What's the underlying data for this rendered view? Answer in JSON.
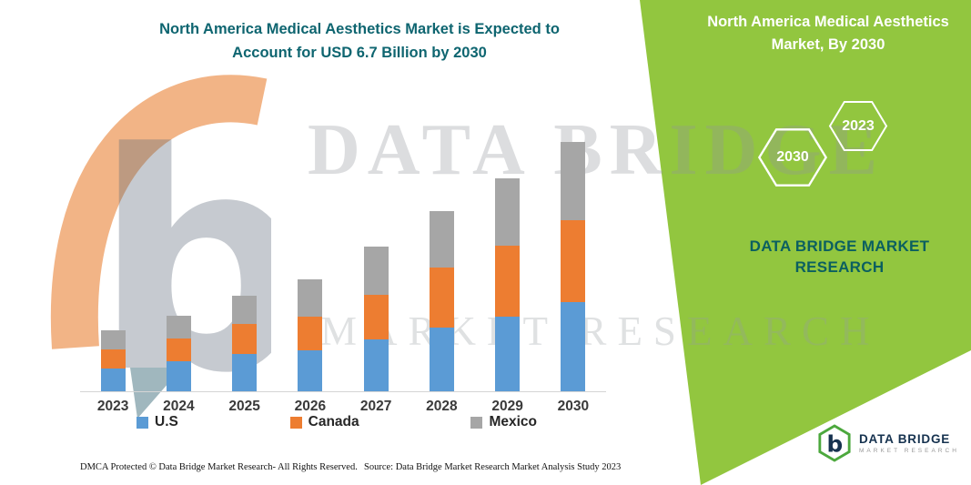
{
  "header": {
    "title_line1": "North America Medical Aesthetics Market is Expected to",
    "title_line2": "Account for USD 6.7 Billion by 2030"
  },
  "banner": {
    "heading": "North America Medical Aesthetics Market, By 2030",
    "hexagon_labels": [
      "2030",
      "2023"
    ],
    "brand_line1": "DATA BRIDGE MARKET",
    "brand_line2": "RESEARCH",
    "background_color": "#92C63F"
  },
  "watermark": {
    "text_line1": "DATA BRIDGE",
    "text_line2": "MARKET RESEARCH"
  },
  "chart_data": {
    "type": "bar",
    "stacked": true,
    "title": "North America Medical Aesthetics Market is Expected to Account for USD 6.7 Billion by 2030",
    "unit": "USD Billion",
    "categories": [
      "2023",
      "2024",
      "2025",
      "2026",
      "2027",
      "2028",
      "2029",
      "2030"
    ],
    "series": [
      {
        "name": "U.S",
        "color": "#5B9BD5",
        "values": [
          0.6,
          0.8,
          1.0,
          1.1,
          1.4,
          1.7,
          2.0,
          2.4
        ]
      },
      {
        "name": "Canada",
        "color": "#ED7D31",
        "values": [
          0.5,
          0.6,
          0.8,
          0.9,
          1.2,
          1.6,
          1.9,
          2.2
        ]
      },
      {
        "name": "Mexico",
        "color": "#A6A6A6",
        "values": [
          0.5,
          0.6,
          0.75,
          1.0,
          1.3,
          1.5,
          1.8,
          2.1
        ]
      }
    ],
    "totals": [
      1.6,
      2.0,
      2.55,
      3.0,
      3.9,
      4.8,
      5.7,
      6.7
    ],
    "ylim": [
      0,
      7
    ],
    "grid": false,
    "legend_position": "bottom"
  },
  "footer": {
    "dmca": "DMCA Protected © Data Bridge Market Research- All Rights Reserved.",
    "source": "Source: Data Bridge Market Research Market Analysis Study 2023"
  },
  "logo": {
    "name": "DATA BRIDGE",
    "tagline": "MARKET RESEARCH"
  }
}
